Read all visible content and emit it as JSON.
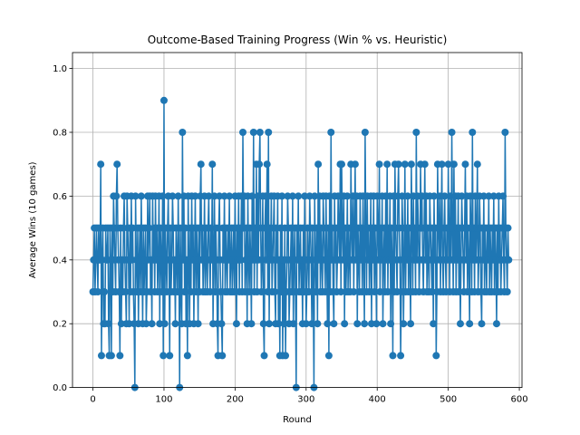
{
  "chart_data": {
    "type": "line",
    "title": "Outcome-Based Training Progress (Win % vs. Heuristic)",
    "xlabel": "Round",
    "ylabel": "Average Wins (10 games)",
    "xlim": [
      -28.75,
      603.75
    ],
    "ylim": [
      0,
      1.05
    ],
    "xticks": [
      0,
      100,
      200,
      300,
      400,
      500,
      600
    ],
    "yticks": [
      0.0,
      0.2,
      0.4,
      0.6,
      0.8,
      1.0
    ],
    "xtick_labels": [
      "0",
      "100",
      "200",
      "300",
      "400",
      "500",
      "600"
    ],
    "ytick_labels": [
      "0.0",
      "0.2",
      "0.4",
      "0.6",
      "0.8",
      "1.0"
    ],
    "grid": true,
    "marker": "circle",
    "color": "#1f77b4",
    "x_start": 0,
    "x_step": 1,
    "values": [
      0.3,
      0.4,
      0.5,
      0.3,
      0.4,
      0.5,
      0.4,
      0.3,
      0.5,
      0.4,
      0.4,
      0.7,
      0.1,
      0.4,
      0.5,
      0.2,
      0.3,
      0.2,
      0.5,
      0.4,
      0.4,
      0.5,
      0.2,
      0.1,
      0.5,
      0.4,
      0.1,
      0.5,
      0.3,
      0.6,
      0.5,
      0.4,
      0.3,
      0.6,
      0.7,
      0.5,
      0.4,
      0.3,
      0.1,
      0.5,
      0.2,
      0.4,
      0.3,
      0.5,
      0.6,
      0.4,
      0.3,
      0.2,
      0.6,
      0.5,
      0.4,
      0.2,
      0.5,
      0.3,
      0.6,
      0.4,
      0.5,
      0.3,
      0.2,
      0.0,
      0.6,
      0.4,
      0.3,
      0.5,
      0.2,
      0.4,
      0.5,
      0.3,
      0.6,
      0.4,
      0.2,
      0.5,
      0.3,
      0.4,
      0.5,
      0.2,
      0.3,
      0.6,
      0.4,
      0.5,
      0.6,
      0.3,
      0.4,
      0.2,
      0.6,
      0.4,
      0.5,
      0.3,
      0.6,
      0.4,
      0.5,
      0.3,
      0.4,
      0.6,
      0.2,
      0.5,
      0.4,
      0.3,
      0.6,
      0.1,
      0.9,
      0.2,
      0.5,
      0.4,
      0.3,
      0.5,
      0.6,
      0.4,
      0.1,
      0.5,
      0.3,
      0.4,
      0.6,
      0.5,
      0.3,
      0.4,
      0.2,
      0.5,
      0.4,
      0.3,
      0.6,
      0.4,
      0.0,
      0.5,
      0.3,
      0.2,
      0.8,
      0.4,
      0.6,
      0.3,
      0.5,
      0.2,
      0.4,
      0.1,
      0.6,
      0.4,
      0.2,
      0.5,
      0.3,
      0.6,
      0.4,
      0.5,
      0.2,
      0.4,
      0.6,
      0.3,
      0.5,
      0.4,
      0.2,
      0.5,
      0.3,
      0.6,
      0.7,
      0.4,
      0.5,
      0.3,
      0.4,
      0.6,
      0.3,
      0.5,
      0.4,
      0.3,
      0.5,
      0.6,
      0.4,
      0.3,
      0.5,
      0.4,
      0.7,
      0.2,
      0.4,
      0.6,
      0.3,
      0.5,
      0.4,
      0.2,
      0.1,
      0.5,
      0.6,
      0.4,
      0.3,
      0.2,
      0.1,
      0.5,
      0.4,
      0.6,
      0.3,
      0.5,
      0.4,
      0.3,
      0.5,
      0.4,
      0.6,
      0.3,
      0.4,
      0.5,
      0.3,
      0.4,
      0.5,
      0.3,
      0.6,
      0.4,
      0.2,
      0.5,
      0.4,
      0.6,
      0.3,
      0.5,
      0.4,
      0.6,
      0.3,
      0.8,
      0.5,
      0.6,
      0.3,
      0.4,
      0.5,
      0.2,
      0.6,
      0.4,
      0.3,
      0.5,
      0.4,
      0.2,
      0.6,
      0.4,
      0.8,
      0.3,
      0.5,
      0.4,
      0.7,
      0.3,
      0.6,
      0.4,
      0.7,
      0.8,
      0.5,
      0.3,
      0.4,
      0.6,
      0.2,
      0.1,
      0.5,
      0.6,
      0.4,
      0.7,
      0.3,
      0.8,
      0.2,
      0.5,
      0.4,
      0.6,
      0.3,
      0.4,
      0.5,
      0.6,
      0.3,
      0.2,
      0.5,
      0.4,
      0.6,
      0.2,
      0.4,
      0.1,
      0.5,
      0.3,
      0.6,
      0.1,
      0.4,
      0.2,
      0.5,
      0.1,
      0.3,
      0.4,
      0.6,
      0.5,
      0.2,
      0.3,
      0.4,
      0.5,
      0.3,
      0.6,
      0.2,
      0.4,
      0.5,
      0.3,
      0.0,
      0.5,
      0.4,
      0.6,
      0.3,
      0.4,
      0.5,
      0.3,
      0.4,
      0.2,
      0.5,
      0.3,
      0.6,
      0.4,
      0.2,
      0.3,
      0.5,
      0.4,
      0.3,
      0.6,
      0.5,
      0.4,
      0.2,
      0.5,
      0.3,
      0.0,
      0.6,
      0.4,
      0.3,
      0.5,
      0.2,
      0.7,
      0.4,
      0.6,
      0.3,
      0.5,
      0.4,
      0.3,
      0.6,
      0.5,
      0.4,
      0.3,
      0.6,
      0.4,
      0.2,
      0.5,
      0.1,
      0.6,
      0.3,
      0.8,
      0.4,
      0.5,
      0.3,
      0.2,
      0.6,
      0.4,
      0.5,
      0.3,
      0.4,
      0.6,
      0.5,
      0.4,
      0.7,
      0.3,
      0.7,
      0.5,
      0.4,
      0.6,
      0.2,
      0.5,
      0.3,
      0.4,
      0.6,
      0.3,
      0.5,
      0.4,
      0.3,
      0.7,
      0.5,
      0.4,
      0.6,
      0.3,
      0.5,
      0.7,
      0.4,
      0.6,
      0.2,
      0.5,
      0.4,
      0.3,
      0.6,
      0.4,
      0.5,
      0.3,
      0.6,
      0.4,
      0.2,
      0.8,
      0.5,
      0.3,
      0.6,
      0.4,
      0.5,
      0.3,
      0.4,
      0.6,
      0.2,
      0.5,
      0.4,
      0.6,
      0.3,
      0.5,
      0.4,
      0.2,
      0.6,
      0.5,
      0.4,
      0.7,
      0.3,
      0.5,
      0.4,
      0.6,
      0.2,
      0.4,
      0.5,
      0.3,
      0.6,
      0.4,
      0.7,
      0.3,
      0.5,
      0.4,
      0.6,
      0.2,
      0.5,
      0.4,
      0.1,
      0.6,
      0.3,
      0.7,
      0.5,
      0.4,
      0.3,
      0.6,
      0.7,
      0.5,
      0.4,
      0.1,
      0.3,
      0.6,
      0.5,
      0.2,
      0.4,
      0.7,
      0.3,
      0.5,
      0.4,
      0.6,
      0.3,
      0.5,
      0.4,
      0.2,
      0.7,
      0.5,
      0.3,
      0.6,
      0.4,
      0.5,
      0.3,
      0.8,
      0.4,
      0.6,
      0.5,
      0.3,
      0.4,
      0.7,
      0.5,
      0.6,
      0.4,
      0.3,
      0.5,
      0.7,
      0.4,
      0.6,
      0.3,
      0.5,
      0.4,
      0.3,
      0.6,
      0.5,
      0.4,
      0.3,
      0.5,
      0.2,
      0.6,
      0.4,
      0.5,
      0.1,
      0.3,
      0.7,
      0.5,
      0.4,
      0.6,
      0.3,
      0.5,
      0.7,
      0.4,
      0.3,
      0.5,
      0.6,
      0.4,
      0.3,
      0.5,
      0.4,
      0.7,
      0.5,
      0.3,
      0.6,
      0.4,
      0.8,
      0.5,
      0.3,
      0.7,
      0.4,
      0.6,
      0.3,
      0.5,
      0.4,
      0.6,
      0.3,
      0.5,
      0.2,
      0.4,
      0.6,
      0.5,
      0.4,
      0.3,
      0.5,
      0.7,
      0.4,
      0.6,
      0.3,
      0.5,
      0.4,
      0.2,
      0.6,
      0.5,
      0.3,
      0.8,
      0.4,
      0.5,
      0.3,
      0.6,
      0.4,
      0.5,
      0.7,
      0.3,
      0.4,
      0.6,
      0.5,
      0.3,
      0.2,
      0.5,
      0.4,
      0.6,
      0.3,
      0.5,
      0.4,
      0.3,
      0.5,
      0.4,
      0.6,
      0.3,
      0.5,
      0.4,
      0.3,
      0.5,
      0.4,
      0.6,
      0.3,
      0.5,
      0.4,
      0.2,
      0.5,
      0.3,
      0.6,
      0.4,
      0.5,
      0.3,
      0.4,
      0.5,
      0.6,
      0.4,
      0.3,
      0.8,
      0.5,
      0.4,
      0.3,
      0.5,
      0.4
    ]
  }
}
